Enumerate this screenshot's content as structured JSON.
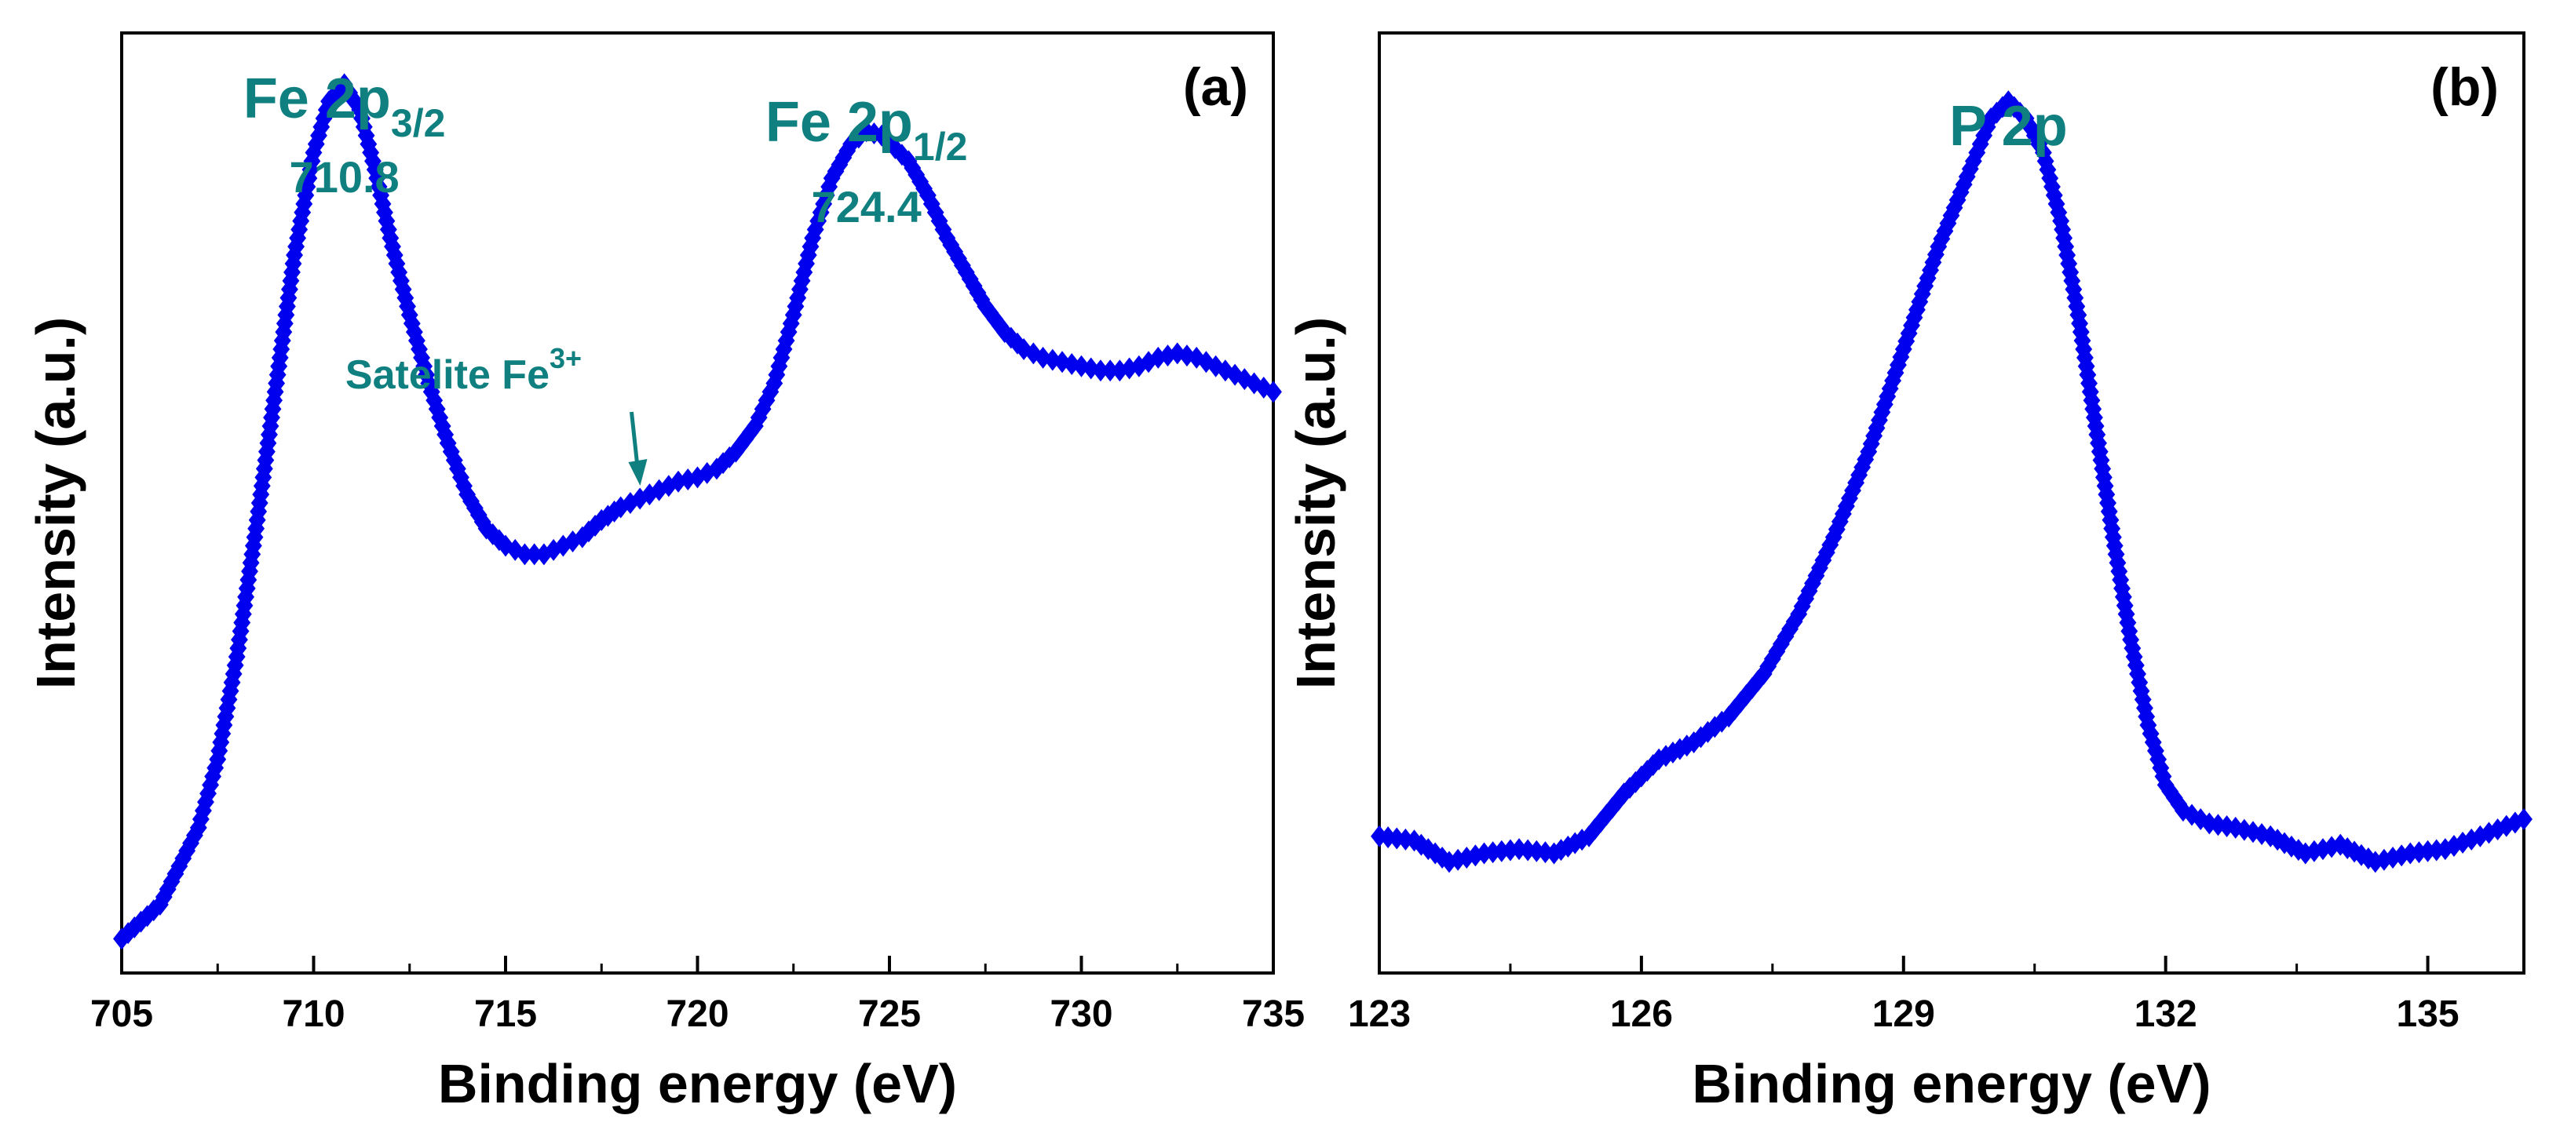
{
  "chart_data": [
    {
      "type": "scatter",
      "panel_label": "(a)",
      "xlabel": "Binding energy (eV)",
      "ylabel": "Intensity (a.u.)",
      "xlim": [
        705,
        735
      ],
      "ylim": [
        0.0,
        1.1
      ],
      "xticks": [
        705,
        710,
        715,
        720,
        725,
        730,
        735
      ],
      "xtick_labels": [
        "705",
        "710",
        "715",
        "720",
        "725",
        "730",
        "735"
      ],
      "y_tick_labels_shown": false,
      "marker": "diamond",
      "series_color": "#0000ee",
      "annotation_color": "#0f7f7f",
      "annotations": [
        {
          "main": "Fe 2p",
          "sub": "3/2",
          "sub_style": "subscript",
          "value": "710.8",
          "x": 710.8
        },
        {
          "main": "Fe 2p",
          "sub": "1/2",
          "sub_style": "subscript",
          "value": "724.4",
          "x": 724.4
        },
        {
          "main": "Satelite Fe",
          "sub": "3+",
          "sub_style": "superscript",
          "x": 718.2,
          "arrow": true
        }
      ],
      "x": [
        705.0,
        706.0,
        707.0,
        707.5,
        708.0,
        708.5,
        709.0,
        709.5,
        710.0,
        710.4,
        710.8,
        711.2,
        711.6,
        712.0,
        712.5,
        713.0,
        713.5,
        714.0,
        714.5,
        715.0,
        715.5,
        716.0,
        716.5,
        717.0,
        717.5,
        718.0,
        718.5,
        719.0,
        719.5,
        720.0,
        720.5,
        721.0,
        721.5,
        722.0,
        722.5,
        723.0,
        723.5,
        724.0,
        724.4,
        724.8,
        725.5,
        726.0,
        726.5,
        727.0,
        727.5,
        728.0,
        728.5,
        729.0,
        729.5,
        730.0,
        730.5,
        731.0,
        731.5,
        732.0,
        732.5,
        733.0,
        733.5,
        734.0,
        734.5,
        735.0
      ],
      "y": [
        0.04,
        0.08,
        0.17,
        0.25,
        0.37,
        0.52,
        0.68,
        0.84,
        0.96,
        1.02,
        1.04,
        1.01,
        0.94,
        0.86,
        0.77,
        0.69,
        0.62,
        0.56,
        0.52,
        0.5,
        0.49,
        0.49,
        0.5,
        0.51,
        0.53,
        0.545,
        0.555,
        0.565,
        0.575,
        0.58,
        0.59,
        0.61,
        0.64,
        0.69,
        0.77,
        0.86,
        0.93,
        0.97,
        0.985,
        0.98,
        0.95,
        0.91,
        0.86,
        0.82,
        0.78,
        0.75,
        0.73,
        0.72,
        0.715,
        0.71,
        0.705,
        0.705,
        0.71,
        0.72,
        0.725,
        0.72,
        0.71,
        0.7,
        0.69,
        0.68
      ]
    },
    {
      "type": "scatter",
      "panel_label": "(b)",
      "xlabel": "Binding energy (eV)",
      "ylabel": "Intensity (a.u.)",
      "xlim": [
        123,
        136.1
      ],
      "ylim": [
        0.0,
        1.1
      ],
      "xticks": [
        123,
        126,
        129,
        132,
        135
      ],
      "xtick_labels": [
        "123",
        "126",
        "129",
        "132",
        "135"
      ],
      "y_tick_labels_shown": false,
      "marker": "diamond",
      "series_color": "#0000ee",
      "annotation_color": "#0f7f7f",
      "annotations": [
        {
          "main": "P 2p",
          "x": 130.2
        }
      ],
      "x": [
        123.0,
        123.4,
        123.8,
        124.2,
        124.6,
        125.0,
        125.4,
        125.8,
        126.2,
        126.6,
        127.0,
        127.4,
        127.8,
        128.2,
        128.6,
        129.0,
        129.4,
        129.8,
        130.0,
        130.2,
        130.4,
        130.6,
        130.8,
        131.0,
        131.2,
        131.4,
        131.6,
        131.8,
        132.0,
        132.2,
        132.5,
        132.8,
        133.2,
        133.6,
        134.0,
        134.4,
        134.8,
        135.2,
        135.6,
        136.1
      ],
      "y": [
        0.16,
        0.155,
        0.13,
        0.14,
        0.145,
        0.14,
        0.16,
        0.21,
        0.25,
        0.27,
        0.3,
        0.35,
        0.42,
        0.51,
        0.61,
        0.73,
        0.85,
        0.95,
        1.0,
        1.02,
        1.0,
        0.96,
        0.88,
        0.77,
        0.64,
        0.51,
        0.39,
        0.29,
        0.22,
        0.19,
        0.175,
        0.17,
        0.16,
        0.14,
        0.15,
        0.13,
        0.14,
        0.145,
        0.16,
        0.18
      ]
    }
  ]
}
